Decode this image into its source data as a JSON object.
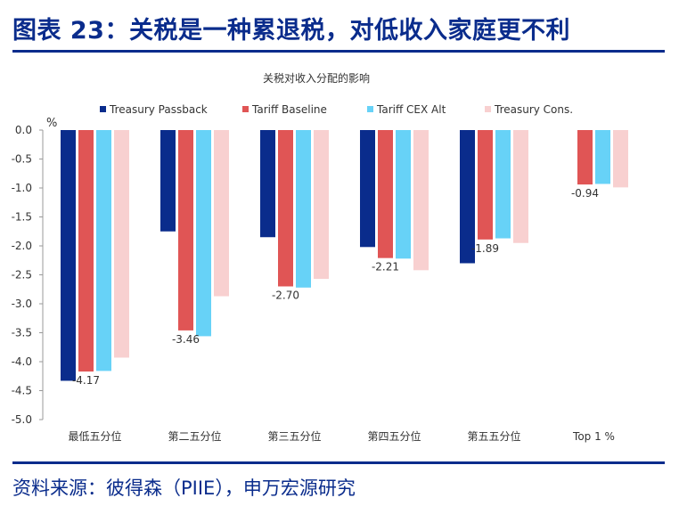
{
  "figure": {
    "title": "图表 23：关税是一种累退税，对低收入家庭更不利",
    "source": "资料来源：彼得森（PIIE），申万宏源研究"
  },
  "chart_data": {
    "type": "bar",
    "title": "关税对收入分配的影响",
    "ylabel": "%",
    "xlabel": "",
    "ylim": [
      -5.0,
      0.0
    ],
    "yticks": [
      "0.0",
      "-0.5",
      "-1.0",
      "-1.5",
      "-2.0",
      "-2.5",
      "-3.0",
      "-3.5",
      "-4.0",
      "-4.5",
      "-5.0"
    ],
    "categories": [
      "最低五分位",
      "第二五分位",
      "第三五分位",
      "第四五分位",
      "第五五分位",
      "Top 1 %"
    ],
    "legend_position": "top",
    "grid": false,
    "series": [
      {
        "name": "Treasury Passback",
        "color": "#0a2c8c",
        "values": [
          -4.33,
          -1.75,
          -1.85,
          -2.02,
          -2.3,
          null
        ]
      },
      {
        "name": "Tariff Baseline",
        "color": "#e05555",
        "values": [
          -4.17,
          -3.46,
          -2.7,
          -2.21,
          -1.89,
          -0.94
        ]
      },
      {
        "name": "Tariff CEX Alt",
        "color": "#67d2f7",
        "values": [
          -4.16,
          -3.56,
          -2.72,
          -2.22,
          -1.87,
          -0.93
        ]
      },
      {
        "name": "Treasury Cons.",
        "color": "#f8d0d0",
        "values": [
          -3.93,
          -2.87,
          -2.57,
          -2.42,
          -1.95,
          -0.99
        ]
      }
    ],
    "data_labels": [
      {
        "category_index": 0,
        "text": "-4.17"
      },
      {
        "category_index": 1,
        "text": "-3.46"
      },
      {
        "category_index": 2,
        "text": "-2.70"
      },
      {
        "category_index": 3,
        "text": "-2.21"
      },
      {
        "category_index": 4,
        "text": "-1.89"
      },
      {
        "category_index": 5,
        "text": "-0.94"
      }
    ]
  }
}
